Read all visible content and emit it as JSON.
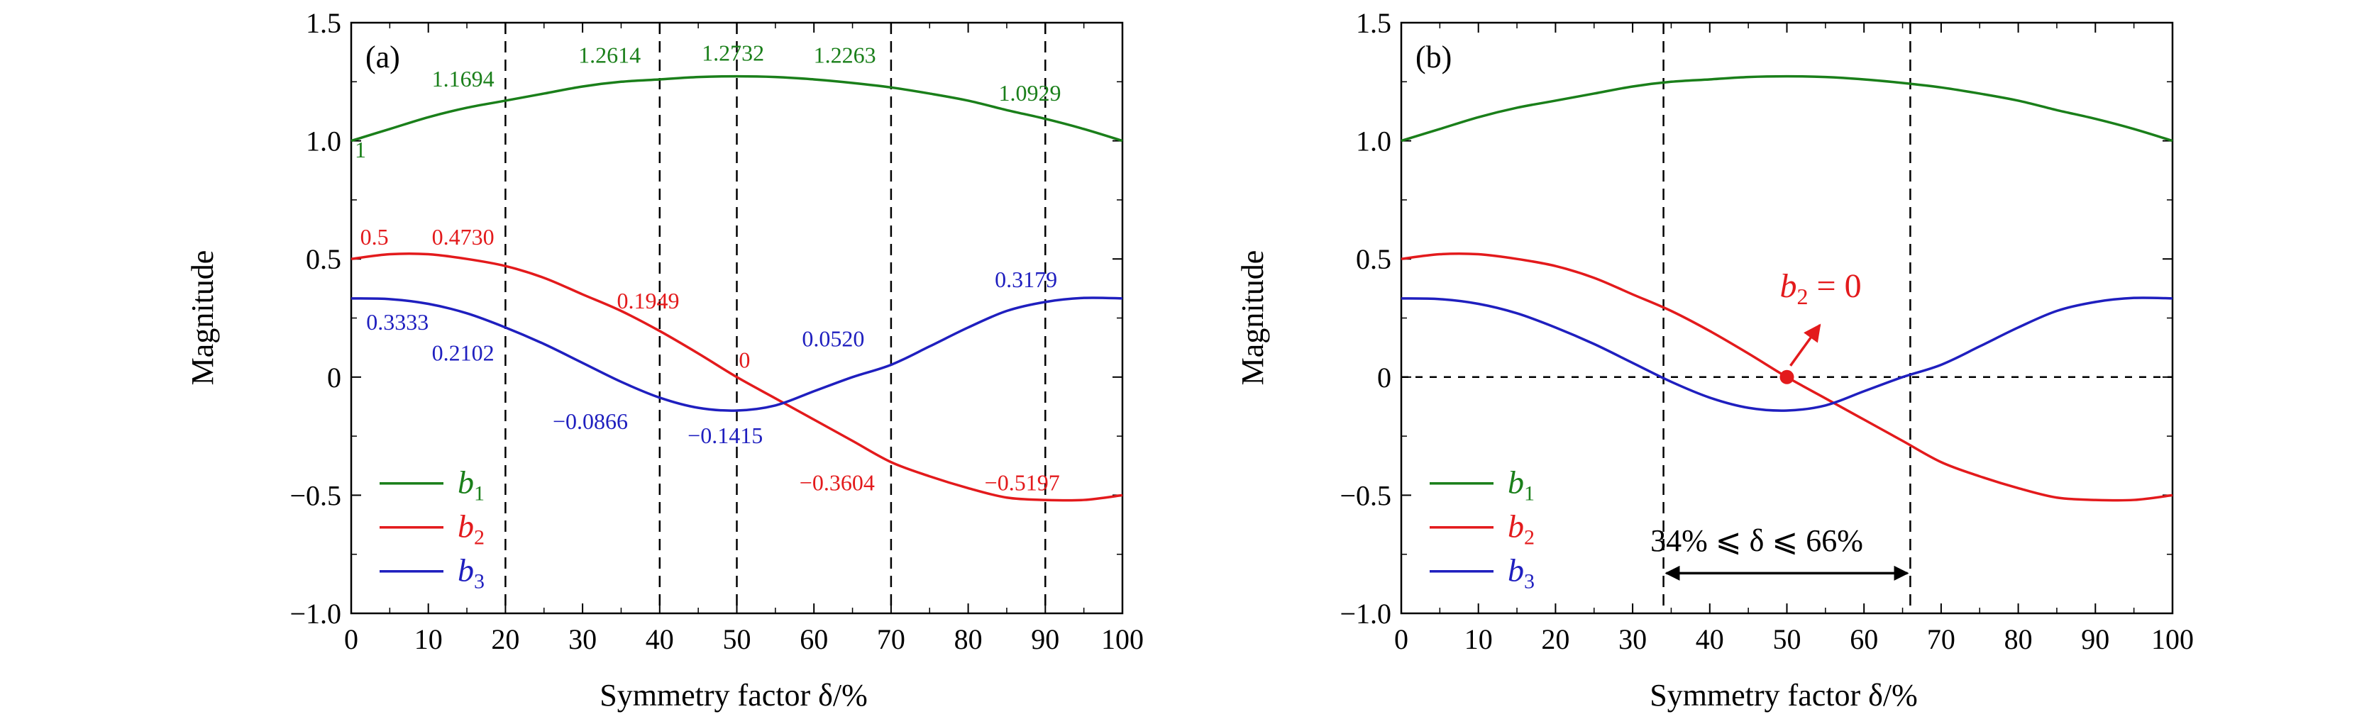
{
  "chart_data": [
    {
      "type": "line",
      "panel_label": "(a)",
      "xlabel": "Symmetry factor δ/%",
      "ylabel": "Magnitude",
      "xlim": [
        0,
        100
      ],
      "ylim": [
        -1.0,
        1.5
      ],
      "xticks": [
        "0",
        "10",
        "20",
        "30",
        "40",
        "50",
        "60",
        "70",
        "80",
        "90",
        "100"
      ],
      "yticks": [
        "1.5",
        "1.0",
        "0.5",
        "0",
        "−0.5",
        "−1.0"
      ],
      "grid": false,
      "legend": "lower-left",
      "vertical_lines_x": [
        20,
        40,
        50,
        70,
        90
      ],
      "series": [
        {
          "name": "b1",
          "legend_main": "b",
          "legend_sub": "1",
          "color": "#1a7f1a",
          "x": [
            0,
            5,
            10,
            15,
            20,
            25,
            30,
            35,
            40,
            45,
            50,
            55,
            60,
            65,
            70,
            75,
            80,
            85,
            90,
            95,
            100
          ],
          "y": [
            1.0,
            1.05,
            1.1,
            1.14,
            1.17,
            1.2,
            1.23,
            1.25,
            1.26,
            1.27,
            1.273,
            1.27,
            1.26,
            1.245,
            1.226,
            1.2,
            1.17,
            1.13,
            1.093,
            1.05,
            1.0
          ]
        },
        {
          "name": "b2",
          "legend_main": "b",
          "legend_sub": "2",
          "color": "#e31a1c",
          "x": [
            0,
            5,
            10,
            15,
            20,
            25,
            30,
            35,
            40,
            45,
            50,
            55,
            60,
            65,
            70,
            75,
            80,
            85,
            90,
            95,
            100
          ],
          "y": [
            0.5,
            0.52,
            0.52,
            0.5,
            0.47,
            0.42,
            0.35,
            0.28,
            0.195,
            0.1,
            0.0,
            -0.09,
            -0.18,
            -0.27,
            -0.36,
            -0.42,
            -0.47,
            -0.51,
            -0.52,
            -0.52,
            -0.5
          ]
        },
        {
          "name": "b3",
          "legend_main": "b",
          "legend_sub": "3",
          "color": "#1f1fbf",
          "x": [
            0,
            5,
            10,
            15,
            20,
            25,
            30,
            35,
            40,
            45,
            50,
            55,
            60,
            65,
            70,
            75,
            80,
            85,
            90,
            95,
            100
          ],
          "y": [
            0.333,
            0.33,
            0.31,
            0.27,
            0.21,
            0.14,
            0.06,
            -0.02,
            -0.087,
            -0.13,
            -0.1415,
            -0.12,
            -0.06,
            0.0,
            0.052,
            0.13,
            0.21,
            0.28,
            0.318,
            0.335,
            0.333
          ]
        }
      ],
      "annotations": [
        {
          "text": "1.1694",
          "x": 14.5,
          "y": 1.23,
          "color": "#1a7f1a"
        },
        {
          "text": "1.2614",
          "x": 33.5,
          "y": 1.33,
          "color": "#1a7f1a"
        },
        {
          "text": "1.2732",
          "x": 49.5,
          "y": 1.34,
          "color": "#1a7f1a"
        },
        {
          "text": "1.2263",
          "x": 64.0,
          "y": 1.33,
          "color": "#1a7f1a"
        },
        {
          "text": "1.0929",
          "x": 88.0,
          "y": 1.17,
          "color": "#1a7f1a"
        },
        {
          "text": "1",
          "x": 1.2,
          "y": 0.93,
          "color": "#1a7f1a"
        },
        {
          "text": "0.5",
          "x": 3.0,
          "y": 0.56,
          "color": "#e31a1c"
        },
        {
          "text": "0.4730",
          "x": 14.5,
          "y": 0.56,
          "color": "#e31a1c"
        },
        {
          "text": "0.1949",
          "x": 38.5,
          "y": 0.29,
          "color": "#e31a1c"
        },
        {
          "text": "0",
          "x": 51.0,
          "y": 0.04,
          "color": "#e31a1c"
        },
        {
          "text": "−0.3604",
          "x": 63.0,
          "y": -0.48,
          "color": "#e31a1c"
        },
        {
          "text": "−0.5197",
          "x": 87.0,
          "y": -0.48,
          "color": "#e31a1c"
        },
        {
          "text": "0.3333",
          "x": 6.0,
          "y": 0.2,
          "color": "#1f1fbf"
        },
        {
          "text": "0.2102",
          "x": 14.5,
          "y": 0.07,
          "color": "#1f1fbf"
        },
        {
          "text": "0.0520",
          "x": 62.5,
          "y": 0.13,
          "color": "#1f1fbf"
        },
        {
          "text": "0.3179",
          "x": 87.5,
          "y": 0.38,
          "color": "#1f1fbf"
        },
        {
          "text": "−0.0866",
          "x": 31.0,
          "y": -0.22,
          "color": "#1f1fbf"
        },
        {
          "text": "−0.1415",
          "x": 48.5,
          "y": -0.28,
          "color": "#1f1fbf"
        }
      ]
    },
    {
      "type": "line",
      "panel_label": "(b)",
      "xlabel": "Symmetry factor δ/%",
      "ylabel": "Magnitude",
      "xlim": [
        0,
        100
      ],
      "ylim": [
        -1.0,
        1.5
      ],
      "xticks": [
        "0",
        "10",
        "20",
        "30",
        "40",
        "50",
        "60",
        "70",
        "80",
        "90",
        "100"
      ],
      "yticks": [
        "1.5",
        "1.0",
        "0.5",
        "0",
        "−0.5",
        "−1.0"
      ],
      "grid": false,
      "legend": "lower-left",
      "vertical_lines_x": [
        34,
        66
      ],
      "horizontal_line_y": 0,
      "series": [
        {
          "name": "b1",
          "legend_main": "b",
          "legend_sub": "1",
          "color": "#1a7f1a",
          "x": [
            0,
            5,
            10,
            15,
            20,
            25,
            30,
            35,
            40,
            45,
            50,
            55,
            60,
            65,
            70,
            75,
            80,
            85,
            90,
            95,
            100
          ],
          "y": [
            1.0,
            1.05,
            1.1,
            1.14,
            1.17,
            1.2,
            1.23,
            1.25,
            1.26,
            1.27,
            1.273,
            1.27,
            1.26,
            1.245,
            1.226,
            1.2,
            1.17,
            1.13,
            1.093,
            1.05,
            1.0
          ]
        },
        {
          "name": "b2",
          "legend_main": "b",
          "legend_sub": "2",
          "color": "#e31a1c",
          "x": [
            0,
            5,
            10,
            15,
            20,
            25,
            30,
            35,
            40,
            45,
            50,
            55,
            60,
            65,
            70,
            75,
            80,
            85,
            90,
            95,
            100
          ],
          "y": [
            0.5,
            0.52,
            0.52,
            0.5,
            0.47,
            0.42,
            0.35,
            0.28,
            0.195,
            0.1,
            0.0,
            -0.09,
            -0.18,
            -0.27,
            -0.36,
            -0.42,
            -0.47,
            -0.51,
            -0.52,
            -0.52,
            -0.5
          ]
        },
        {
          "name": "b3",
          "legend_main": "b",
          "legend_sub": "3",
          "color": "#1f1fbf",
          "x": [
            0,
            5,
            10,
            15,
            20,
            25,
            30,
            35,
            40,
            45,
            50,
            55,
            60,
            65,
            70,
            75,
            80,
            85,
            90,
            95,
            100
          ],
          "y": [
            0.333,
            0.33,
            0.31,
            0.27,
            0.21,
            0.14,
            0.06,
            -0.02,
            -0.087,
            -0.13,
            -0.1415,
            -0.12,
            -0.06,
            0.0,
            0.052,
            0.13,
            0.21,
            0.28,
            0.318,
            0.335,
            0.333
          ]
        }
      ],
      "marker": {
        "x": 50,
        "y": 0,
        "color": "#e31a1c"
      },
      "callout": {
        "text_main": "b",
        "text_sub": "2",
        "text_rest": " = 0",
        "x": 50,
        "y": 0.38,
        "color": "#e31a1c"
      },
      "range_text": "34% ⩽ δ ⩽ 66%",
      "range_arrow": {
        "from": 34,
        "to": 66,
        "y": -0.83
      }
    }
  ]
}
